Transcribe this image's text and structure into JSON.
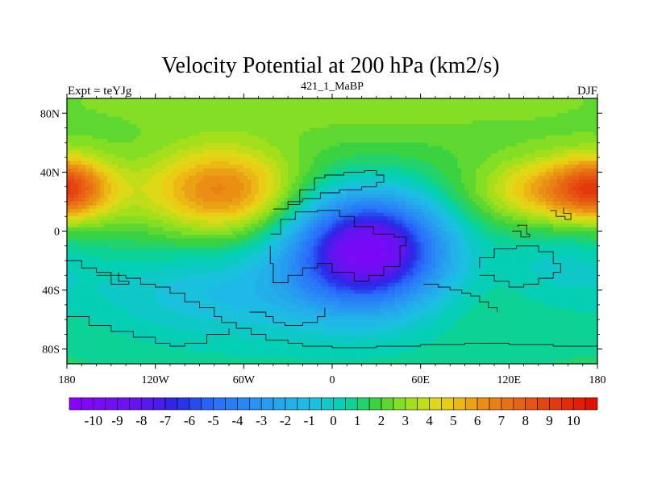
{
  "chart_data": {
    "type": "contour-map",
    "title": "Velocity Potential at 200 hPa (km2/s)",
    "subtitle": "421_1_MaBP",
    "left_label": "Expt = teYJg",
    "right_label": "DJF",
    "x_range": [
      -180,
      180
    ],
    "y_range": [
      -90,
      90
    ],
    "x_ticks": [
      {
        "value": -180,
        "label": "180"
      },
      {
        "value": -120,
        "label": "120W"
      },
      {
        "value": -60,
        "label": "60W"
      },
      {
        "value": 0,
        "label": "0"
      },
      {
        "value": 60,
        "label": "60E"
      },
      {
        "value": 120,
        "label": "120E"
      },
      {
        "value": 180,
        "label": "180"
      }
    ],
    "y_ticks": [
      {
        "value": 80,
        "label": "80N"
      },
      {
        "value": 40,
        "label": "40N"
      },
      {
        "value": 0,
        "label": "0"
      },
      {
        "value": -40,
        "label": "40S"
      },
      {
        "value": -80,
        "label": "80S"
      }
    ],
    "colorbar": {
      "min": -11,
      "max": 11,
      "step": 0.5,
      "labels": [
        "-10",
        "-9",
        "-8",
        "-7",
        "-6",
        "-5",
        "-4",
        "-3",
        "-2",
        "-1",
        "0",
        "1",
        "2",
        "3",
        "4",
        "5",
        "6",
        "7",
        "8",
        "9",
        "10"
      ]
    },
    "field": {
      "background": 1.8,
      "centers": [
        {
          "name": "equatorial-low",
          "lon": 25,
          "lat": -12,
          "value": -11.2,
          "sx": 36,
          "sy": 26
        },
        {
          "name": "southern-trough",
          "lon": -70,
          "lat": -40,
          "value": -2.6,
          "sx": 75,
          "sy": 22
        },
        {
          "name": "eastern-trough",
          "lon": 150,
          "lat": -20,
          "value": -1.6,
          "sx": 35,
          "sy": 22
        },
        {
          "name": "polar-south",
          "lon": 0,
          "lat": -85,
          "value": -1.0,
          "sx": 200,
          "sy": 25
        },
        {
          "name": "atlantic-high",
          "lon": -75,
          "lat": 28,
          "value": 4.8,
          "sx": 34,
          "sy": 20
        },
        {
          "name": "pacific-high",
          "lon": 160,
          "lat": 27,
          "value": 4.6,
          "sx": 38,
          "sy": 16
        },
        {
          "name": "dateline-high",
          "lon": -180,
          "lat": 30,
          "value": 3.5,
          "sx": 18,
          "sy": 14
        },
        {
          "name": "polar-north",
          "lon": 0,
          "lat": 88,
          "value": 1.0,
          "sx": 200,
          "sy": 20
        }
      ]
    },
    "coastlines": [
      [
        [
          -40,
          15
        ],
        [
          -30,
          18
        ],
        [
          -22,
          28
        ],
        [
          -12,
          36
        ],
        [
          -5,
          38
        ],
        [
          8,
          40
        ],
        [
          22,
          41
        ],
        [
          30,
          38
        ],
        [
          35,
          33
        ],
        [
          30,
          30
        ],
        [
          20,
          28
        ],
        [
          5,
          26
        ],
        [
          -8,
          22
        ],
        [
          -20,
          20
        ],
        [
          -30,
          18
        ]
      ],
      [
        [
          -42,
          -2
        ],
        [
          -35,
          8
        ],
        [
          -25,
          13
        ],
        [
          -10,
          14
        ],
        [
          5,
          10
        ],
        [
          15,
          3
        ],
        [
          28,
          -2
        ],
        [
          42,
          -4
        ],
        [
          50,
          -10
        ],
        [
          46,
          -24
        ],
        [
          35,
          -30
        ],
        [
          25,
          -34
        ],
        [
          15,
          -28
        ],
        [
          0,
          -22
        ],
        [
          -10,
          -25
        ],
        [
          -20,
          -30
        ],
        [
          -30,
          -35
        ],
        [
          -40,
          -22
        ],
        [
          -42,
          -10
        ]
      ],
      [
        [
          -180,
          -20
        ],
        [
          -170,
          -25
        ],
        [
          -160,
          -28
        ],
        [
          -150,
          -30
        ],
        [
          -140,
          -32
        ],
        [
          -130,
          -36
        ],
        [
          -120,
          -38
        ],
        [
          -110,
          -42
        ],
        [
          -100,
          -48
        ],
        [
          -90,
          -52
        ],
        [
          -80,
          -58
        ],
        [
          -75,
          -62
        ],
        [
          -65,
          -66
        ],
        [
          -55,
          -70
        ],
        [
          -45,
          -74
        ],
        [
          -30,
          -76
        ],
        [
          -20,
          -78
        ],
        [
          0,
          -79
        ],
        [
          30,
          -78
        ],
        [
          60,
          -77
        ],
        [
          90,
          -76
        ],
        [
          120,
          -77
        ],
        [
          150,
          -78
        ],
        [
          180,
          -80
        ]
      ],
      [
        [
          -180,
          -58
        ],
        [
          -165,
          -64
        ],
        [
          -150,
          -68
        ],
        [
          -135,
          -72
        ],
        [
          -120,
          -76
        ],
        [
          -110,
          -78
        ],
        [
          -100,
          -76
        ],
        [
          -85,
          -70
        ],
        [
          -70,
          -66
        ]
      ],
      [
        [
          100,
          -30
        ],
        [
          110,
          -34
        ],
        [
          120,
          -38
        ],
        [
          130,
          -36
        ],
        [
          140,
          -32
        ],
        [
          150,
          -28
        ],
        [
          155,
          -22
        ],
        [
          150,
          -14
        ],
        [
          140,
          -10
        ],
        [
          125,
          -12
        ],
        [
          110,
          -18
        ],
        [
          100,
          -25
        ]
      ],
      [
        [
          122,
          0
        ],
        [
          128,
          -4
        ],
        [
          134,
          -2
        ],
        [
          132,
          4
        ],
        [
          126,
          3
        ]
      ],
      [
        [
          148,
          14
        ],
        [
          152,
          10
        ],
        [
          158,
          8
        ],
        [
          162,
          12
        ],
        [
          157,
          16
        ]
      ],
      [
        [
          -160,
          -30
        ],
        [
          -150,
          -36
        ],
        [
          -138,
          -34
        ],
        [
          -145,
          -28
        ]
      ],
      [
        [
          62,
          -36
        ],
        [
          72,
          -38
        ],
        [
          80,
          -40
        ],
        [
          88,
          -42
        ],
        [
          94,
          -44
        ],
        [
          100,
          -48
        ],
        [
          106,
          -52
        ],
        [
          112,
          -55
        ]
      ],
      [
        [
          -56,
          -55
        ],
        [
          -45,
          -58
        ],
        [
          -40,
          -62
        ],
        [
          -32,
          -64
        ],
        [
          -20,
          -62
        ],
        [
          -10,
          -58
        ],
        [
          -5,
          -52
        ]
      ]
    ]
  }
}
